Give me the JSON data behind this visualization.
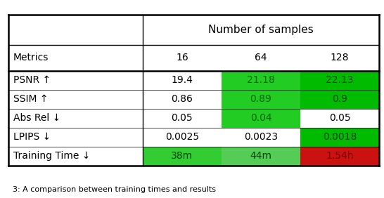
{
  "header_group": "Number of samples",
  "col_headers": [
    "Metrics",
    "16",
    "64",
    "128"
  ],
  "rows": [
    [
      "PSNR ↑",
      "19.4",
      "21.18",
      "22.13"
    ],
    [
      "SSIM ↑",
      "0.86",
      "0.89",
      "0.9"
    ],
    [
      "Abs Rel ↓",
      "0.05",
      "0.04",
      "0.05"
    ],
    [
      "LPIPS ↓",
      "0.0025",
      "0.0023",
      "0.0018"
    ],
    [
      "Training Time ↓",
      "38m",
      "44m",
      "1.54h"
    ]
  ],
  "cell_colors": [
    [
      "white",
      "white",
      "#22cc22",
      "#00bb00"
    ],
    [
      "white",
      "white",
      "#22cc22",
      "#00bb00"
    ],
    [
      "white",
      "white",
      "#22cc22",
      "white"
    ],
    [
      "white",
      "white",
      "white",
      "#00bb00"
    ],
    [
      "white",
      "#33cc33",
      "#55cc55",
      "#cc1111"
    ]
  ],
  "text_colors": [
    [
      "black",
      "black",
      "#006600",
      "#004400"
    ],
    [
      "black",
      "black",
      "#006600",
      "#004400"
    ],
    [
      "black",
      "black",
      "#006600",
      "black"
    ],
    [
      "black",
      "black",
      "black",
      "#004400"
    ],
    [
      "black",
      "#004400",
      "#004400",
      "#770000"
    ]
  ],
  "fig_bg": "white",
  "caption": "3: A comparison between training times and results"
}
